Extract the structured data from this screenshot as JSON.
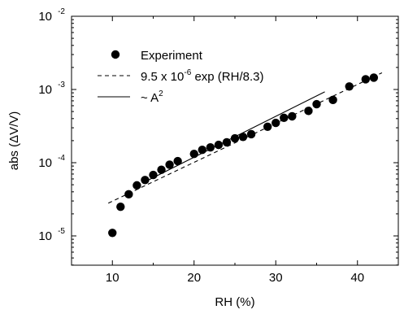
{
  "chart_data": {
    "type": "scatter",
    "x_label": "RH (%)",
    "y_label": "abs (ΔV/V)",
    "x_range": [
      5,
      45
    ],
    "y_range_exponents": [
      -5.4,
      -2
    ],
    "y_scale": "log",
    "x_ticks": [
      "10",
      "20",
      "30",
      "40"
    ],
    "y_ticks": [
      {
        "base": "10",
        "exp": "-5"
      },
      {
        "base": "10",
        "exp": "-4"
      },
      {
        "base": "10",
        "exp": "-3"
      },
      {
        "base": "10",
        "exp": "-2"
      }
    ],
    "grid": false,
    "legend_position": "top-left",
    "legend": {
      "experiment": "Experiment",
      "fit_prefix": "9.5 x 10",
      "fit_exp": "-6",
      "fit_suffix": " exp (RH/8.3)",
      "power_prefix": "~ A",
      "power_exp": "2"
    },
    "series": [
      {
        "name": "Experiment",
        "kind": "points",
        "x": [
          10,
          11,
          12,
          13,
          14,
          15,
          16,
          17,
          18,
          20,
          21,
          22,
          23,
          24,
          25,
          26,
          27,
          29,
          30,
          31,
          32,
          34,
          35,
          37,
          39,
          41,
          42
        ],
        "y": [
          1.1e-05,
          2.5e-05,
          3.7e-05,
          4.9e-05,
          5.8e-05,
          6.8e-05,
          8e-05,
          9.4e-05,
          0.000105,
          0.000132,
          0.00015,
          0.000162,
          0.000175,
          0.00019,
          0.000215,
          0.000225,
          0.000245,
          0.00031,
          0.00035,
          0.00041,
          0.00043,
          0.00051,
          0.00063,
          0.00072,
          0.0011,
          0.00138,
          0.00145
        ]
      },
      {
        "name": "9.5 x 10^-6 exp (RH/8.3)",
        "kind": "dashed-line",
        "x": [
          9.5,
          43
        ],
        "y": [
          2.8e-05,
          0.00169
        ]
      },
      {
        "name": "~ A^2",
        "kind": "solid-line",
        "x": [
          14,
          36
        ],
        "y": [
          5.5e-05,
          0.00093
        ]
      }
    ]
  }
}
